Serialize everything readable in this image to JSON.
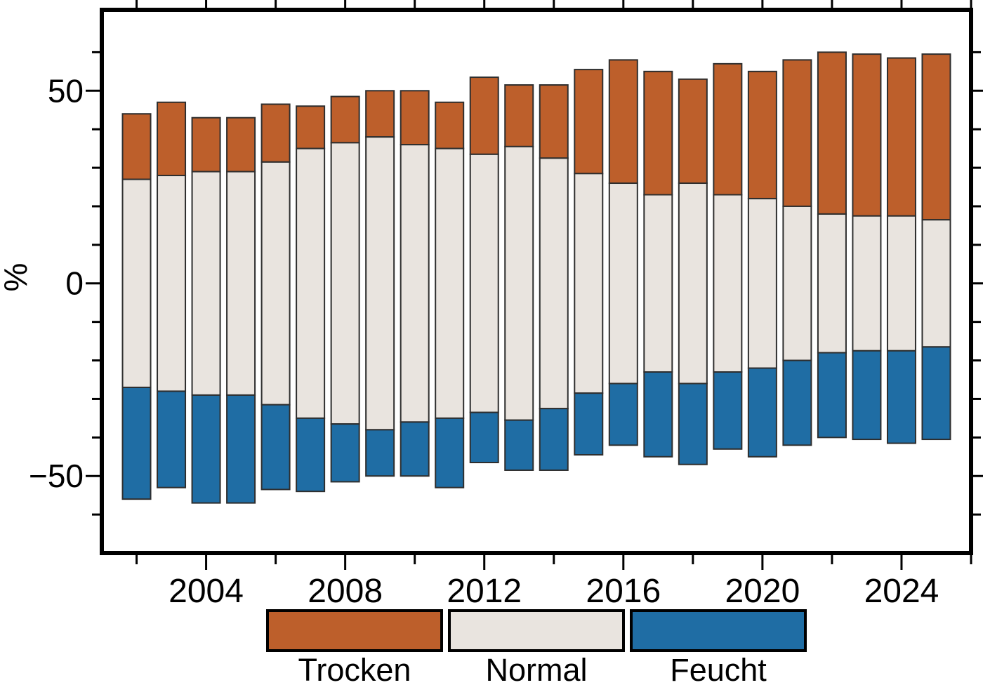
{
  "figure": {
    "background": "#ffffff"
  },
  "chart_data": {
    "type": "bar",
    "subtype": "diverging-stacked-percentage",
    "title": "",
    "xlabel": "",
    "ylabel": "%",
    "unit": "%",
    "grid": false,
    "stack_rule": "Normal band centered on zero; Trocken stacked above; Feucht stacked below; each year sums to 100%",
    "categories": [
      2002,
      2003,
      2004,
      2005,
      2006,
      2007,
      2008,
      2009,
      2010,
      2011,
      2012,
      2013,
      2014,
      2015,
      2016,
      2017,
      2018,
      2019,
      2020,
      2021,
      2022,
      2023,
      2024,
      2025
    ],
    "series": [
      {
        "name": "Trocken",
        "color": "#bd5f2b",
        "values": [
          17,
          19,
          14,
          14,
          15,
          11,
          12,
          12,
          14,
          12,
          20,
          16,
          19,
          27,
          32,
          32,
          27,
          34,
          33,
          38,
          42,
          42,
          41,
          43
        ]
      },
      {
        "name": "Normal",
        "color": "#e9e4df",
        "values": [
          54,
          56,
          58,
          58,
          63,
          70,
          73,
          76,
          72,
          70,
          67,
          71,
          65,
          57,
          52,
          46,
          52,
          46,
          44,
          40,
          36,
          35,
          35,
          33
        ]
      },
      {
        "name": "Feucht",
        "color": "#1f6da4",
        "values": [
          29,
          25,
          28,
          28,
          22,
          19,
          15,
          12,
          14,
          18,
          13,
          13,
          16,
          16,
          16,
          22,
          21,
          20,
          23,
          22,
          22,
          23,
          24,
          24
        ]
      }
    ],
    "xlim": [
      2001,
      2026
    ],
    "ylim": [
      -70,
      71
    ],
    "yticks": {
      "major": [
        -50,
        0,
        50
      ],
      "major_labels": [
        "−50",
        "0",
        "50"
      ],
      "minor_start": -60,
      "minor_end": 60,
      "minor_step": 10
    },
    "xticks": {
      "major": [
        2004,
        2008,
        2012,
        2016,
        2020,
        2024
      ],
      "major_labels": [
        "2004",
        "2008",
        "2012",
        "2016",
        "2020",
        "2024"
      ],
      "minor": [
        2002,
        2006,
        2010,
        2014,
        2018,
        2022,
        2026
      ]
    },
    "legend": {
      "position": "bottom-center",
      "entries": [
        "Trocken",
        "Normal",
        "Feucht"
      ]
    },
    "style": {
      "frame_color": "#000000",
      "tick_color": "#000000",
      "bar_outline_color": "#2e2e2e",
      "text_color": "#000000"
    }
  }
}
